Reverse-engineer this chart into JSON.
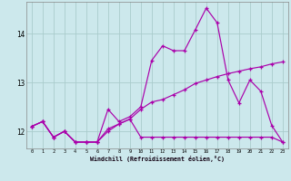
{
  "xlabel": "Windchill (Refroidissement éolien,°C)",
  "bg_color": "#cce8ec",
  "grid_color": "#aacccc",
  "line_color": "#aa00aa",
  "xlim": [
    -0.5,
    23.5
  ],
  "ylim": [
    11.65,
    14.65
  ],
  "yticks": [
    12,
    13,
    14
  ],
  "xticks": [
    0,
    1,
    2,
    3,
    4,
    5,
    6,
    7,
    8,
    9,
    10,
    11,
    12,
    13,
    14,
    15,
    16,
    17,
    18,
    19,
    20,
    21,
    22,
    23
  ],
  "line1_x": [
    0,
    1,
    2,
    3,
    4,
    5,
    6,
    7,
    8,
    9,
    10,
    11,
    12,
    13,
    14,
    15,
    16,
    17,
    18,
    19,
    20,
    21,
    22,
    23
  ],
  "line1_y": [
    12.1,
    12.2,
    11.88,
    12.0,
    11.78,
    11.78,
    11.78,
    12.05,
    12.15,
    12.25,
    12.45,
    12.6,
    12.65,
    12.75,
    12.85,
    12.98,
    13.05,
    13.12,
    13.18,
    13.23,
    13.28,
    13.32,
    13.38,
    13.42
  ],
  "line2_x": [
    0,
    1,
    2,
    3,
    4,
    5,
    6,
    7,
    8,
    9,
    10,
    11,
    12,
    13,
    14,
    15,
    16,
    17,
    18,
    19,
    20,
    21,
    22,
    23
  ],
  "line2_y": [
    12.1,
    12.2,
    11.88,
    12.0,
    11.78,
    11.78,
    11.78,
    12.45,
    12.2,
    12.3,
    12.5,
    13.45,
    13.75,
    13.65,
    13.65,
    14.08,
    14.52,
    14.22,
    13.05,
    12.58,
    13.05,
    12.82,
    12.12,
    11.78
  ],
  "line3_x": [
    0,
    1,
    2,
    3,
    4,
    5,
    6,
    7,
    8,
    9,
    10,
    11,
    12,
    13,
    14,
    15,
    16,
    17,
    18,
    19,
    20,
    21,
    22,
    23
  ],
  "line3_y": [
    12.1,
    12.2,
    11.88,
    12.0,
    11.78,
    11.78,
    11.78,
    12.0,
    12.15,
    12.25,
    11.88,
    11.88,
    11.88,
    11.88,
    11.88,
    11.88,
    11.88,
    11.88,
    11.88,
    11.88,
    11.88,
    11.88,
    11.88,
    11.78
  ]
}
